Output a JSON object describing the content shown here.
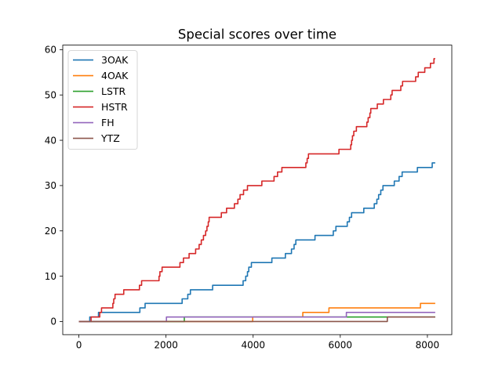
{
  "chart_data": {
    "type": "line",
    "title": "Special scores over time",
    "xlabel": "",
    "ylabel": "",
    "xlim": [
      -370,
      8560
    ],
    "ylim": [
      -2.9,
      61
    ],
    "xticks": [
      0,
      2000,
      4000,
      6000,
      8000
    ],
    "yticks": [
      0,
      10,
      20,
      30,
      40,
      50,
      60
    ],
    "grid": false,
    "legend_position": "top-left",
    "series": [
      {
        "name": "3OAK",
        "color": "#1f77b4",
        "points": [
          [
            0,
            0
          ],
          [
            250,
            0
          ],
          [
            250,
            1
          ],
          [
            450,
            1
          ],
          [
            450,
            2
          ],
          [
            1400,
            2
          ],
          [
            1400,
            3
          ],
          [
            1520,
            3
          ],
          [
            1520,
            4
          ],
          [
            2370,
            4
          ],
          [
            2370,
            5
          ],
          [
            2500,
            5
          ],
          [
            2500,
            6
          ],
          [
            2560,
            6
          ],
          [
            2560,
            7
          ],
          [
            3070,
            7
          ],
          [
            3070,
            8
          ],
          [
            3770,
            8
          ],
          [
            3770,
            9
          ],
          [
            3830,
            9
          ],
          [
            3830,
            10
          ],
          [
            3870,
            10
          ],
          [
            3870,
            11
          ],
          [
            3900,
            11
          ],
          [
            3900,
            12
          ],
          [
            3960,
            12
          ],
          [
            3960,
            13
          ],
          [
            4430,
            13
          ],
          [
            4430,
            14
          ],
          [
            4740,
            14
          ],
          [
            4740,
            15
          ],
          [
            4880,
            15
          ],
          [
            4880,
            16
          ],
          [
            4940,
            16
          ],
          [
            4940,
            17
          ],
          [
            4980,
            17
          ],
          [
            4980,
            18
          ],
          [
            5420,
            18
          ],
          [
            5420,
            19
          ],
          [
            5840,
            19
          ],
          [
            5840,
            20
          ],
          [
            5900,
            20
          ],
          [
            5900,
            21
          ],
          [
            6160,
            21
          ],
          [
            6160,
            22
          ],
          [
            6210,
            22
          ],
          [
            6210,
            23
          ],
          [
            6260,
            23
          ],
          [
            6260,
            24
          ],
          [
            6540,
            24
          ],
          [
            6540,
            25
          ],
          [
            6780,
            25
          ],
          [
            6780,
            26
          ],
          [
            6840,
            26
          ],
          [
            6840,
            27
          ],
          [
            6880,
            27
          ],
          [
            6880,
            28
          ],
          [
            6930,
            28
          ],
          [
            6930,
            29
          ],
          [
            6980,
            29
          ],
          [
            6980,
            30
          ],
          [
            7240,
            30
          ],
          [
            7240,
            31
          ],
          [
            7350,
            31
          ],
          [
            7350,
            32
          ],
          [
            7420,
            32
          ],
          [
            7420,
            33
          ],
          [
            7770,
            33
          ],
          [
            7770,
            34
          ],
          [
            8110,
            34
          ],
          [
            8110,
            35
          ],
          [
            8180,
            35
          ]
        ]
      },
      {
        "name": "4OAK",
        "color": "#ff7f0e",
        "points": [
          [
            0,
            0
          ],
          [
            3990,
            0
          ],
          [
            3990,
            1
          ],
          [
            5140,
            1
          ],
          [
            5140,
            2
          ],
          [
            5740,
            2
          ],
          [
            5740,
            3
          ],
          [
            7840,
            3
          ],
          [
            7840,
            4
          ],
          [
            8180,
            4
          ]
        ]
      },
      {
        "name": "LSTR",
        "color": "#2ca02c",
        "points": [
          [
            0,
            0
          ],
          [
            2420,
            0
          ],
          [
            2420,
            1
          ],
          [
            8180,
            1
          ]
        ]
      },
      {
        "name": "HSTR",
        "color": "#d62728",
        "points": [
          [
            0,
            0
          ],
          [
            280,
            0
          ],
          [
            280,
            1
          ],
          [
            480,
            1
          ],
          [
            480,
            2
          ],
          [
            520,
            2
          ],
          [
            520,
            3
          ],
          [
            780,
            3
          ],
          [
            780,
            4
          ],
          [
            800,
            4
          ],
          [
            800,
            5
          ],
          [
            830,
            5
          ],
          [
            830,
            6
          ],
          [
            1030,
            6
          ],
          [
            1030,
            7
          ],
          [
            1390,
            7
          ],
          [
            1390,
            8
          ],
          [
            1440,
            8
          ],
          [
            1440,
            9
          ],
          [
            1840,
            9
          ],
          [
            1840,
            10
          ],
          [
            1860,
            10
          ],
          [
            1860,
            11
          ],
          [
            1910,
            11
          ],
          [
            1910,
            12
          ],
          [
            2320,
            12
          ],
          [
            2320,
            13
          ],
          [
            2400,
            13
          ],
          [
            2400,
            14
          ],
          [
            2530,
            14
          ],
          [
            2530,
            15
          ],
          [
            2680,
            15
          ],
          [
            2680,
            16
          ],
          [
            2760,
            16
          ],
          [
            2760,
            17
          ],
          [
            2810,
            17
          ],
          [
            2810,
            18
          ],
          [
            2860,
            18
          ],
          [
            2860,
            19
          ],
          [
            2910,
            19
          ],
          [
            2910,
            20
          ],
          [
            2940,
            20
          ],
          [
            2940,
            21
          ],
          [
            2970,
            21
          ],
          [
            2970,
            22
          ],
          [
            2990,
            22
          ],
          [
            2990,
            23
          ],
          [
            3270,
            23
          ],
          [
            3270,
            24
          ],
          [
            3390,
            24
          ],
          [
            3390,
            25
          ],
          [
            3570,
            25
          ],
          [
            3570,
            26
          ],
          [
            3650,
            26
          ],
          [
            3650,
            27
          ],
          [
            3700,
            27
          ],
          [
            3700,
            28
          ],
          [
            3780,
            28
          ],
          [
            3780,
            29
          ],
          [
            3870,
            29
          ],
          [
            3870,
            30
          ],
          [
            4200,
            30
          ],
          [
            4200,
            31
          ],
          [
            4480,
            31
          ],
          [
            4480,
            32
          ],
          [
            4560,
            32
          ],
          [
            4560,
            33
          ],
          [
            4660,
            33
          ],
          [
            4660,
            34
          ],
          [
            5210,
            34
          ],
          [
            5210,
            35
          ],
          [
            5240,
            35
          ],
          [
            5240,
            36
          ],
          [
            5270,
            36
          ],
          [
            5270,
            37
          ],
          [
            5970,
            37
          ],
          [
            5970,
            38
          ],
          [
            6240,
            38
          ],
          [
            6240,
            39
          ],
          [
            6260,
            39
          ],
          [
            6260,
            40
          ],
          [
            6280,
            40
          ],
          [
            6280,
            41
          ],
          [
            6310,
            41
          ],
          [
            6310,
            42
          ],
          [
            6370,
            42
          ],
          [
            6370,
            43
          ],
          [
            6610,
            43
          ],
          [
            6610,
            44
          ],
          [
            6640,
            44
          ],
          [
            6640,
            45
          ],
          [
            6680,
            45
          ],
          [
            6680,
            46
          ],
          [
            6700,
            46
          ],
          [
            6700,
            47
          ],
          [
            6850,
            47
          ],
          [
            6850,
            48
          ],
          [
            6990,
            48
          ],
          [
            6990,
            49
          ],
          [
            7160,
            49
          ],
          [
            7160,
            50
          ],
          [
            7190,
            50
          ],
          [
            7190,
            51
          ],
          [
            7390,
            51
          ],
          [
            7390,
            52
          ],
          [
            7430,
            52
          ],
          [
            7430,
            53
          ],
          [
            7730,
            53
          ],
          [
            7730,
            54
          ],
          [
            7790,
            54
          ],
          [
            7790,
            55
          ],
          [
            7940,
            55
          ],
          [
            7940,
            56
          ],
          [
            8070,
            56
          ],
          [
            8070,
            57
          ],
          [
            8150,
            57
          ],
          [
            8150,
            58
          ],
          [
            8180,
            58
          ]
        ]
      },
      {
        "name": "FH",
        "color": "#9467bd",
        "points": [
          [
            0,
            0
          ],
          [
            2010,
            0
          ],
          [
            2010,
            1
          ],
          [
            6140,
            1
          ],
          [
            6140,
            2
          ],
          [
            8180,
            2
          ]
        ]
      },
      {
        "name": "YTZ",
        "color": "#8c564b",
        "points": [
          [
            0,
            0
          ],
          [
            7080,
            0
          ],
          [
            7080,
            1
          ],
          [
            8180,
            1
          ]
        ]
      }
    ]
  }
}
